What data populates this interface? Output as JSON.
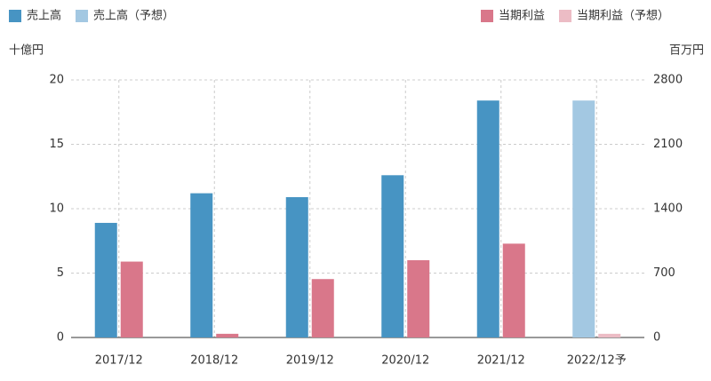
{
  "chart_data": {
    "type": "bar",
    "categories": [
      "2017/12",
      "2018/12",
      "2019/12",
      "2020/12",
      "2021/12",
      "2022/12予"
    ],
    "y_label": "十億円",
    "y2_label": "百万円",
    "ylim": [
      0,
      20
    ],
    "yticks": [
      0,
      5,
      10,
      15,
      20
    ],
    "y2lim": [
      0,
      2800
    ],
    "y2ticks": [
      0,
      700,
      1400,
      2100,
      2800
    ],
    "grid": true,
    "series": [
      {
        "name": "売上高",
        "color": "#4794c3",
        "values": [
          8.9,
          11.2,
          10.9,
          12.6,
          18.4,
          null
        ]
      },
      {
        "name": "売上高（予想）",
        "color": "#a3c8e2",
        "values": [
          null,
          null,
          null,
          null,
          null,
          18.4
        ]
      },
      {
        "name": "当期利益",
        "color": "#d9778a",
        "axis": "y2",
        "values": [
          825,
          40,
          635,
          840,
          1020,
          null
        ]
      },
      {
        "name": "当期利益（予想）",
        "color": "#ecbcc5",
        "axis": "y2",
        "values": [
          null,
          null,
          null,
          null,
          null,
          40
        ]
      }
    ]
  }
}
